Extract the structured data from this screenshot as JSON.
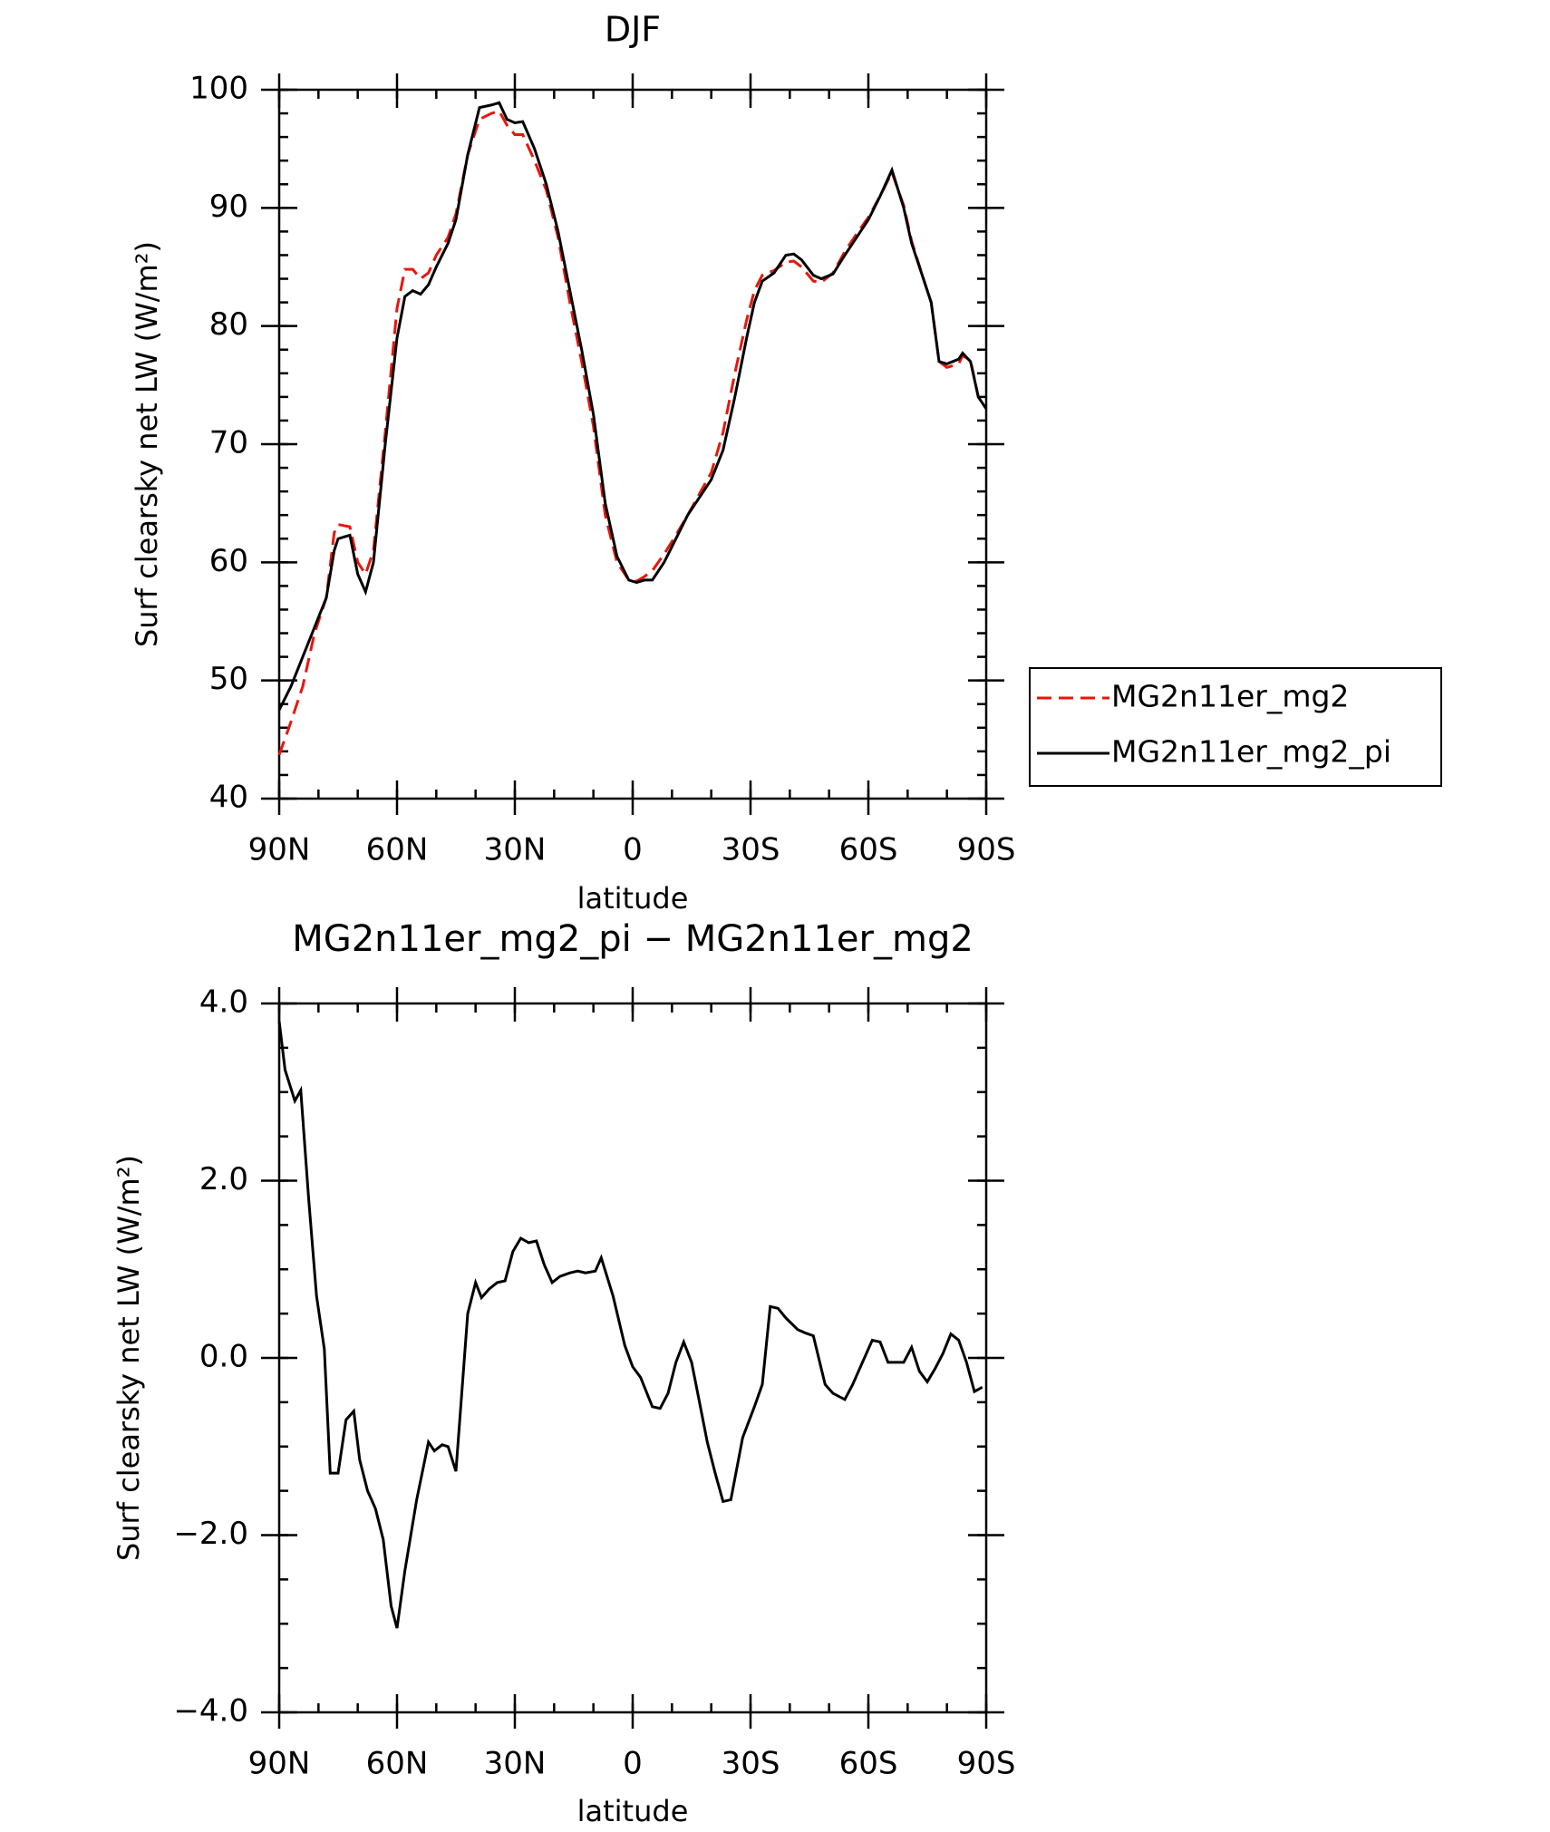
{
  "chart_data": [
    {
      "type": "line",
      "title": "DJF",
      "xlabel": "latitude",
      "ylabel": "Surf clearsky net LW (W/m²)",
      "x": [
        90,
        87,
        84,
        81,
        78,
        76,
        75,
        72,
        70,
        68,
        66,
        63,
        60,
        58,
        56,
        54,
        52,
        50,
        47,
        45,
        42,
        39,
        36,
        34,
        32,
        30,
        28,
        25,
        22,
        19,
        16,
        13,
        10,
        7,
        4,
        1,
        -1,
        -3,
        -5,
        -8,
        -11,
        -14,
        -17,
        -20,
        -23,
        -26,
        -29,
        -31,
        -33,
        -36,
        -39,
        -41,
        -43,
        -46,
        -48,
        -51,
        -54,
        -57,
        -60,
        -63,
        -66,
        -69,
        -71,
        -74,
        -76,
        -78,
        -80,
        -83,
        -84,
        -86,
        -88,
        -90
      ],
      "series": [
        {
          "name": "MG2n11er_mg2",
          "color": "#e8160c",
          "dash": true,
          "values": [
            43.7,
            46.5,
            49.5,
            54,
            57,
            62.5,
            63.2,
            63,
            60,
            59,
            61,
            71,
            81.5,
            84.8,
            84.8,
            84,
            84.5,
            86,
            87.5,
            89.5,
            94.5,
            97.5,
            98,
            98.2,
            97,
            96.2,
            96.2,
            94,
            91.5,
            87.5,
            82,
            77,
            71.5,
            64,
            60,
            58.5,
            58.4,
            58.8,
            59.3,
            60.7,
            62.3,
            64,
            65.8,
            67.6,
            71,
            76,
            80.5,
            83,
            84.3,
            84.7,
            85.4,
            85.5,
            85,
            83.8,
            83.7,
            84.5,
            86.3,
            87.8,
            89.2,
            91,
            93,
            90.2,
            87.2,
            84,
            82,
            77,
            76.5,
            76.8,
            77.5,
            77.1,
            74,
            73
          ]
        },
        {
          "name": "MG2n11er_mg2_pi",
          "color": "#000000",
          "dash": false,
          "values": [
            47.5,
            49.5,
            52,
            54.5,
            57,
            61,
            62,
            62.3,
            59,
            57.5,
            60,
            70,
            79,
            82.5,
            83,
            82.7,
            83.5,
            85,
            87,
            89,
            94.5,
            98.5,
            98.7,
            98.9,
            97.5,
            97.2,
            97.3,
            95,
            92,
            88,
            83,
            78,
            72.5,
            65,
            60.5,
            58.5,
            58.3,
            58.5,
            58.5,
            60,
            62,
            64,
            65.5,
            67,
            69.5,
            74,
            79,
            82,
            83.8,
            84.5,
            86,
            86.1,
            85.6,
            84.3,
            84,
            84.4,
            86,
            87.5,
            89,
            91,
            93.2,
            90,
            87,
            84,
            82,
            77,
            76.8,
            77.2,
            77.7,
            77,
            74,
            73
          ]
        }
      ],
      "xlim": [
        90,
        -90
      ],
      "xticks": [
        {
          "value": 90,
          "label": "90N"
        },
        {
          "value": 60,
          "label": "60N"
        },
        {
          "value": 30,
          "label": "30N"
        },
        0,
        {
          "value": -30,
          "label": "30S"
        },
        {
          "value": -60,
          "label": "60S"
        },
        {
          "value": -90,
          "label": "90S"
        }
      ],
      "ylim": [
        40,
        100
      ],
      "yticks": [
        40,
        50,
        60,
        70,
        80,
        90,
        100
      ],
      "minor_xtick_step": 10,
      "minor_ytick_step": 2,
      "legend": "right"
    },
    {
      "type": "line",
      "title": "MG2n11er_mg2_pi − MG2n11er_mg2",
      "xlabel": "latitude",
      "ylabel": "Surf clearsky net LW (W/m²)",
      "x": [
        90,
        88.5,
        86,
        84.5,
        82.5,
        80.5,
        78.5,
        77,
        75,
        73,
        71,
        69.5,
        67.5,
        65.5,
        63.5,
        61.5,
        60,
        58,
        55,
        52,
        50.5,
        48.5,
        47,
        45,
        42,
        40,
        38.5,
        36.5,
        34.5,
        32.5,
        30.5,
        28.5,
        26.5,
        24.5,
        22.5,
        20.5,
        18.5,
        16,
        14,
        12,
        9.5,
        8,
        5,
        2,
        0,
        -2,
        -5,
        -7,
        -9,
        -11,
        -13,
        -15,
        -17,
        -19,
        -21,
        -23,
        -25,
        -28,
        -31,
        -33,
        -35,
        -37,
        -39,
        -42,
        -44,
        -46,
        -49,
        -51,
        -54,
        -56,
        -58,
        -61,
        -63,
        -65,
        -67,
        -69,
        -71,
        -73,
        -75,
        -77,
        -79,
        -81,
        -83,
        -85,
        -87,
        -89
      ],
      "series": [
        {
          "color": "#000000",
          "dash": false,
          "values": [
            3.8,
            3.25,
            2.9,
            3.02,
            1.8,
            0.7,
            0.1,
            -1.3,
            -1.3,
            -0.7,
            -0.6,
            -1.15,
            -1.5,
            -1.7,
            -2.05,
            -2.8,
            -3.05,
            -2.4,
            -1.6,
            -0.95,
            -1.05,
            -0.98,
            -1.0,
            -1.28,
            0.5,
            0.85,
            0.68,
            0.78,
            0.85,
            0.87,
            1.2,
            1.35,
            1.3,
            1.32,
            1.05,
            0.85,
            0.92,
            0.96,
            0.98,
            0.96,
            0.98,
            1.13,
            0.7,
            0.14,
            -0.1,
            -0.22,
            -0.55,
            -0.57,
            -0.4,
            -0.05,
            0.18,
            -0.05,
            -0.5,
            -0.95,
            -1.3,
            -1.62,
            -1.6,
            -0.9,
            -0.55,
            -0.3,
            0.58,
            0.56,
            0.45,
            0.32,
            0.28,
            0.25,
            -0.3,
            -0.4,
            -0.47,
            -0.3,
            -0.1,
            0.2,
            0.18,
            -0.05,
            -0.05,
            -0.05,
            0.12,
            -0.15,
            -0.27,
            -0.12,
            0.05,
            0.27,
            0.2,
            -0.05,
            -0.38,
            -0.33
          ]
        }
      ],
      "xlim": [
        90,
        -90
      ],
      "xticks": [
        {
          "value": 90,
          "label": "90N"
        },
        {
          "value": 60,
          "label": "60N"
        },
        {
          "value": 30,
          "label": "30N"
        },
        0,
        {
          "value": -30,
          "label": "30S"
        },
        {
          "value": -60,
          "label": "60S"
        },
        {
          "value": -90,
          "label": "90S"
        }
      ],
      "ylim": [
        -4,
        4
      ],
      "yticks": [
        {
          "value": -4,
          "label": "−4.0"
        },
        {
          "value": -2,
          "label": "−2.0"
        },
        {
          "value": 0,
          "label": "0.0"
        },
        {
          "value": 2,
          "label": "2.0"
        },
        {
          "value": 4,
          "label": "4.0"
        }
      ],
      "minor_xtick_step": 10,
      "minor_ytick_step": 0.5
    }
  ]
}
